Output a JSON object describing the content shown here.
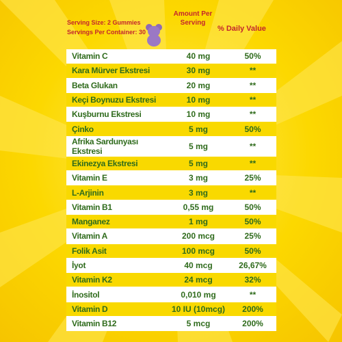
{
  "header": {
    "serving_size": "Serving Size: 2 Gummies",
    "servings_per_container": "Servings Per Container: 30",
    "amount_per_serving": "Amount Per Serving",
    "daily_value": "% Daily Value"
  },
  "table": {
    "rows": [
      [
        "Vitamin C",
        "40 mg",
        "50%"
      ],
      [
        "Kara Mürver Ekstresi",
        "30 mg",
        "**"
      ],
      [
        "Beta Glukan",
        "20 mg",
        "**"
      ],
      [
        "Keçi Boynuzu Ekstresi",
        "10 mg",
        "**"
      ],
      [
        "Kuşburnu Ekstresi",
        "10 mg",
        "**"
      ],
      [
        "Çinko",
        "5 mg",
        "50%"
      ],
      [
        "Afrika Sardunyası Ekstresi",
        "5 mg",
        "**"
      ],
      [
        "Ekinezya Ekstresi",
        "5 mg",
        "**"
      ],
      [
        "Vitamin E",
        "3 mg",
        "25%"
      ],
      [
        "L-Arjinin",
        "3 mg",
        "**"
      ],
      [
        "Vitamin B1",
        "0,55 mg",
        "50%"
      ],
      [
        "Manganez",
        "1 mg",
        "50%"
      ],
      [
        "Vitamin A",
        "200 mcg",
        "25%"
      ],
      [
        "Folik Asit",
        "100 mcg",
        "50%"
      ],
      [
        "İyot",
        "40 mcg",
        "26,67%"
      ],
      [
        "Vitamin K2",
        "24 mcg",
        "32%"
      ],
      [
        "İnositol",
        "0,010 mg",
        "**"
      ],
      [
        "Vitamin D",
        "10 IU (10mcg)",
        "200%"
      ],
      [
        "Vitamin B12",
        "5 mcg",
        "200%"
      ]
    ]
  }
}
